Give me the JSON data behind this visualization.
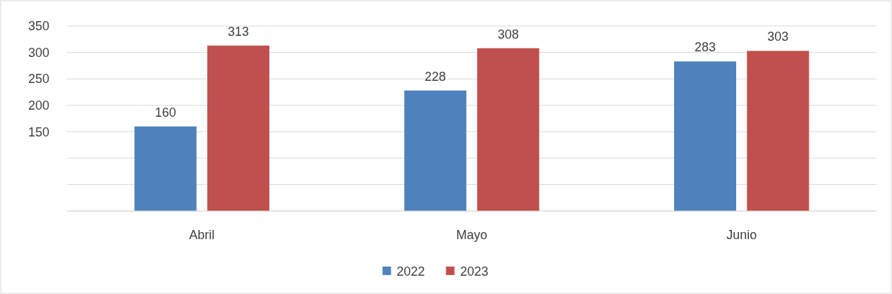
{
  "chart_data": {
    "type": "bar",
    "categories": [
      "Abril",
      "Mayo",
      "Junio"
    ],
    "series": [
      {
        "name": "2022",
        "color": "#4f81bd",
        "values": [
          160,
          228,
          283
        ]
      },
      {
        "name": "2023",
        "color": "#c0504d",
        "values": [
          313,
          308,
          303
        ]
      }
    ],
    "ylim": [
      0,
      350
    ],
    "yticks": [
      {
        "value": 0,
        "label": null
      },
      {
        "value": 50,
        "label": null
      },
      {
        "value": 100,
        "label": null
      },
      {
        "value": 150,
        "label": "150"
      },
      {
        "value": 200,
        "label": "200"
      },
      {
        "value": 250,
        "label": "250"
      },
      {
        "value": 300,
        "label": "300"
      },
      {
        "value": 350,
        "label": "350"
      }
    ],
    "grid": "y",
    "legend": "bottom",
    "data_labels": true
  }
}
